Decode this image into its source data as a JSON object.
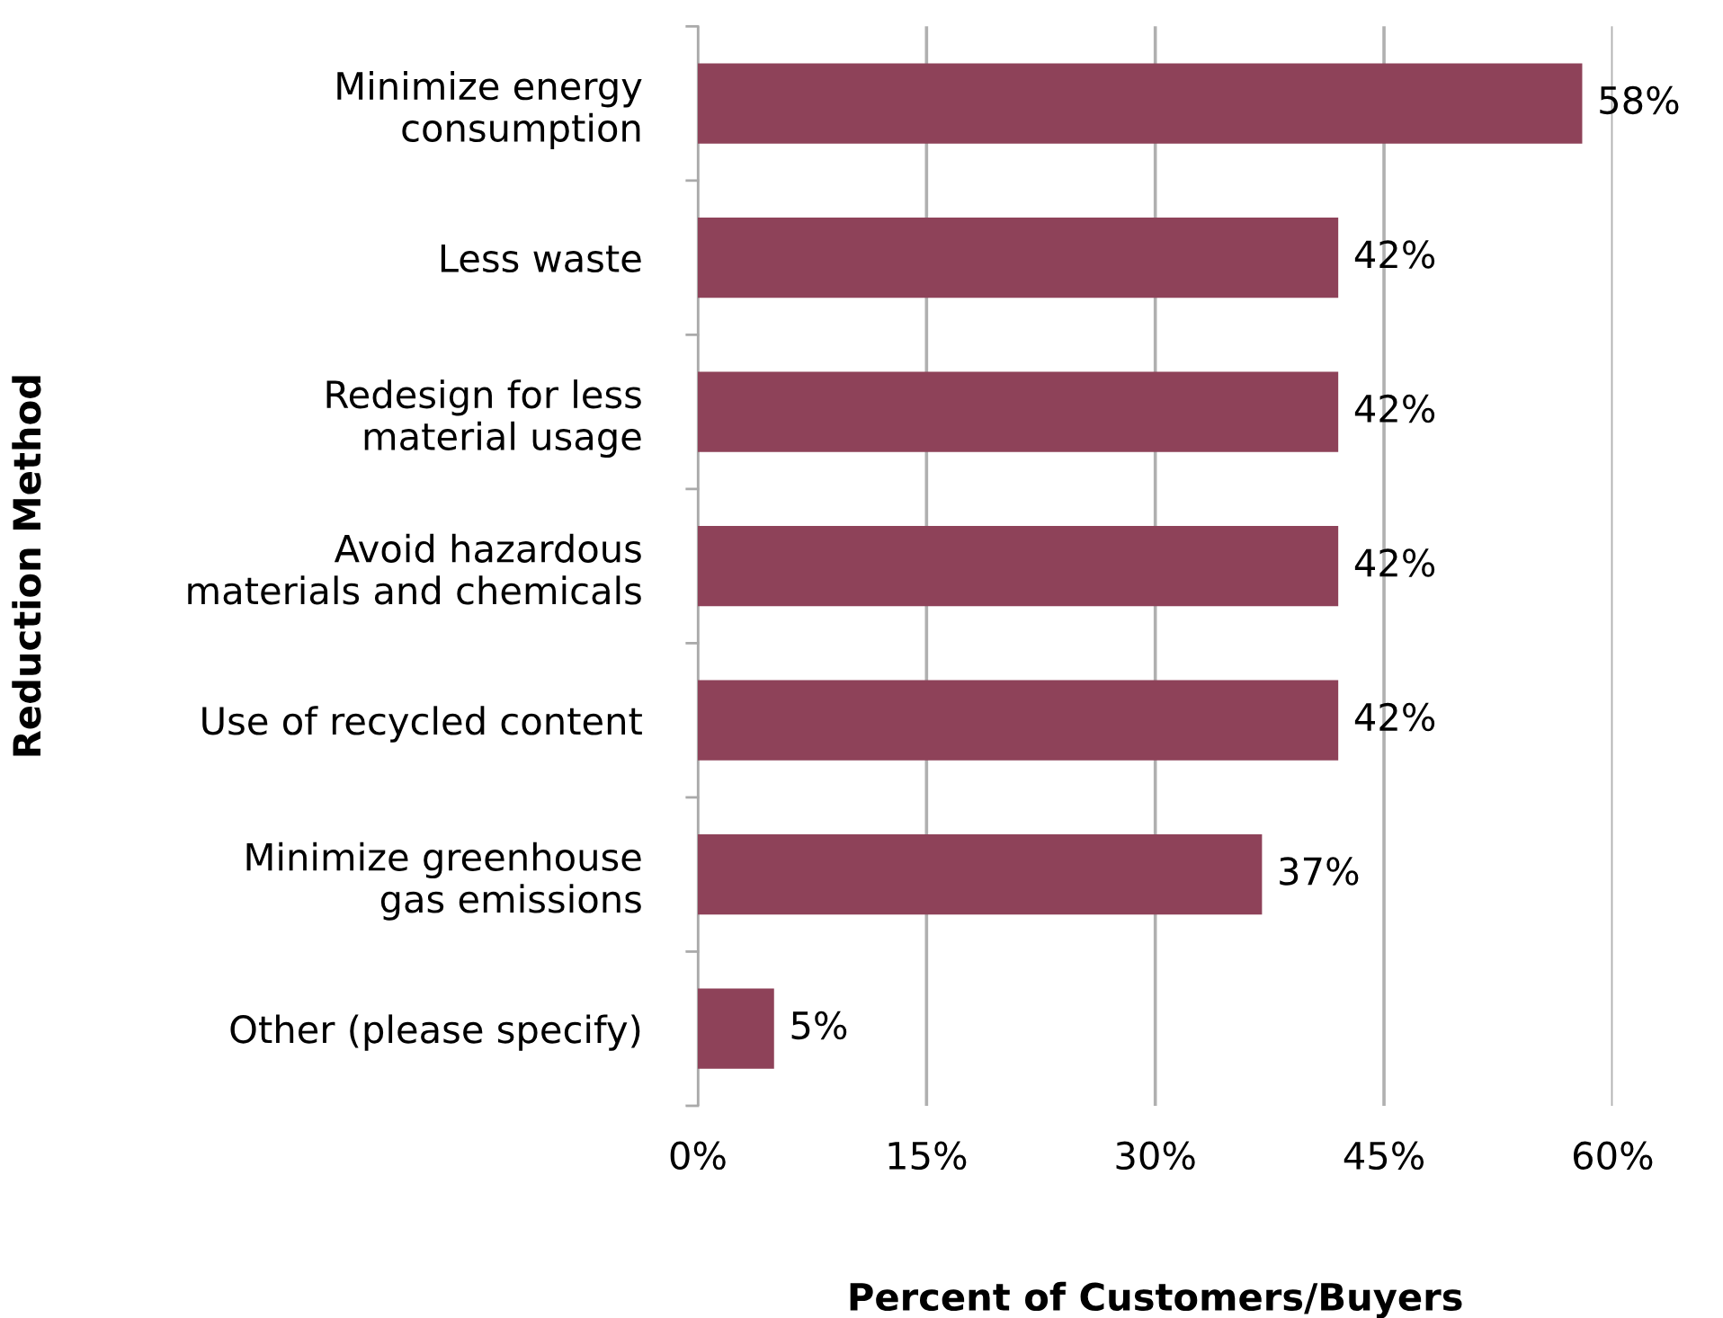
{
  "chart_data": {
    "type": "bar",
    "orientation": "horizontal",
    "xlabel": "Percent of Customers/Buyers",
    "ylabel": "Reduction Method",
    "categories": [
      "Minimize energy\nconsumption",
      "Less waste",
      "Redesign for less\nmaterial usage",
      "Avoid hazardous\nmaterials and chemicals",
      "Use of recycled content",
      "Minimize greenhouse\ngas emissions",
      "Other (please specify)"
    ],
    "values": [
      58,
      42,
      42,
      42,
      42,
      37,
      5
    ],
    "value_labels": [
      "58%",
      "42%",
      "42%",
      "42%",
      "42%",
      "37%",
      "5%"
    ],
    "color": "#8e4259",
    "xlim": [
      0,
      60
    ],
    "xticks": [
      {
        "value": 0,
        "label": "0%"
      },
      {
        "value": 15,
        "label": "15%"
      },
      {
        "value": 30,
        "label": "30%"
      },
      {
        "value": 45,
        "label": "45%"
      },
      {
        "value": 60,
        "label": "60%"
      }
    ],
    "grid": "x"
  }
}
